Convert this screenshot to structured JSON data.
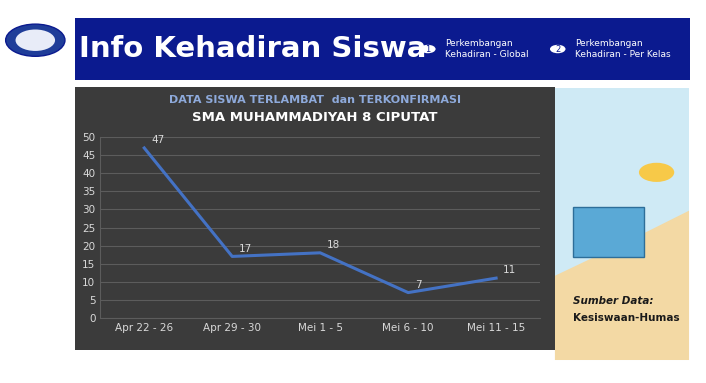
{
  "header": {
    "title": "Info Kehadiran Siswa",
    "nav": [
      {
        "number": 1,
        "label": "Perkembangan\nKehadiran - Global"
      },
      {
        "number": 2,
        "label": "Perkembangan\nKehadiran - Per Kelas"
      }
    ]
  },
  "chart_data": {
    "type": "line",
    "title": "DATA SISWA TERLAMBAT  dan TERKONFIRMASI",
    "subtitle": "SMA MUHAMMADIYAH 8 CIPUTAT",
    "categories": [
      "Apr 22 - 26",
      "Apr 29 - 30",
      "Mei 1 - 5",
      "Mei 6 - 10",
      "Mei 11 - 15"
    ],
    "values": [
      47,
      17,
      18,
      7,
      11
    ],
    "color": "#4472c4",
    "ylim": [
      0,
      50
    ],
    "yticks": [
      0,
      5,
      10,
      15,
      20,
      25,
      30,
      35,
      40,
      45,
      50
    ],
    "grid": true,
    "data_labels": true
  },
  "source": {
    "label": "Sumber Data:",
    "value": "Kesiswaan-Humas"
  }
}
